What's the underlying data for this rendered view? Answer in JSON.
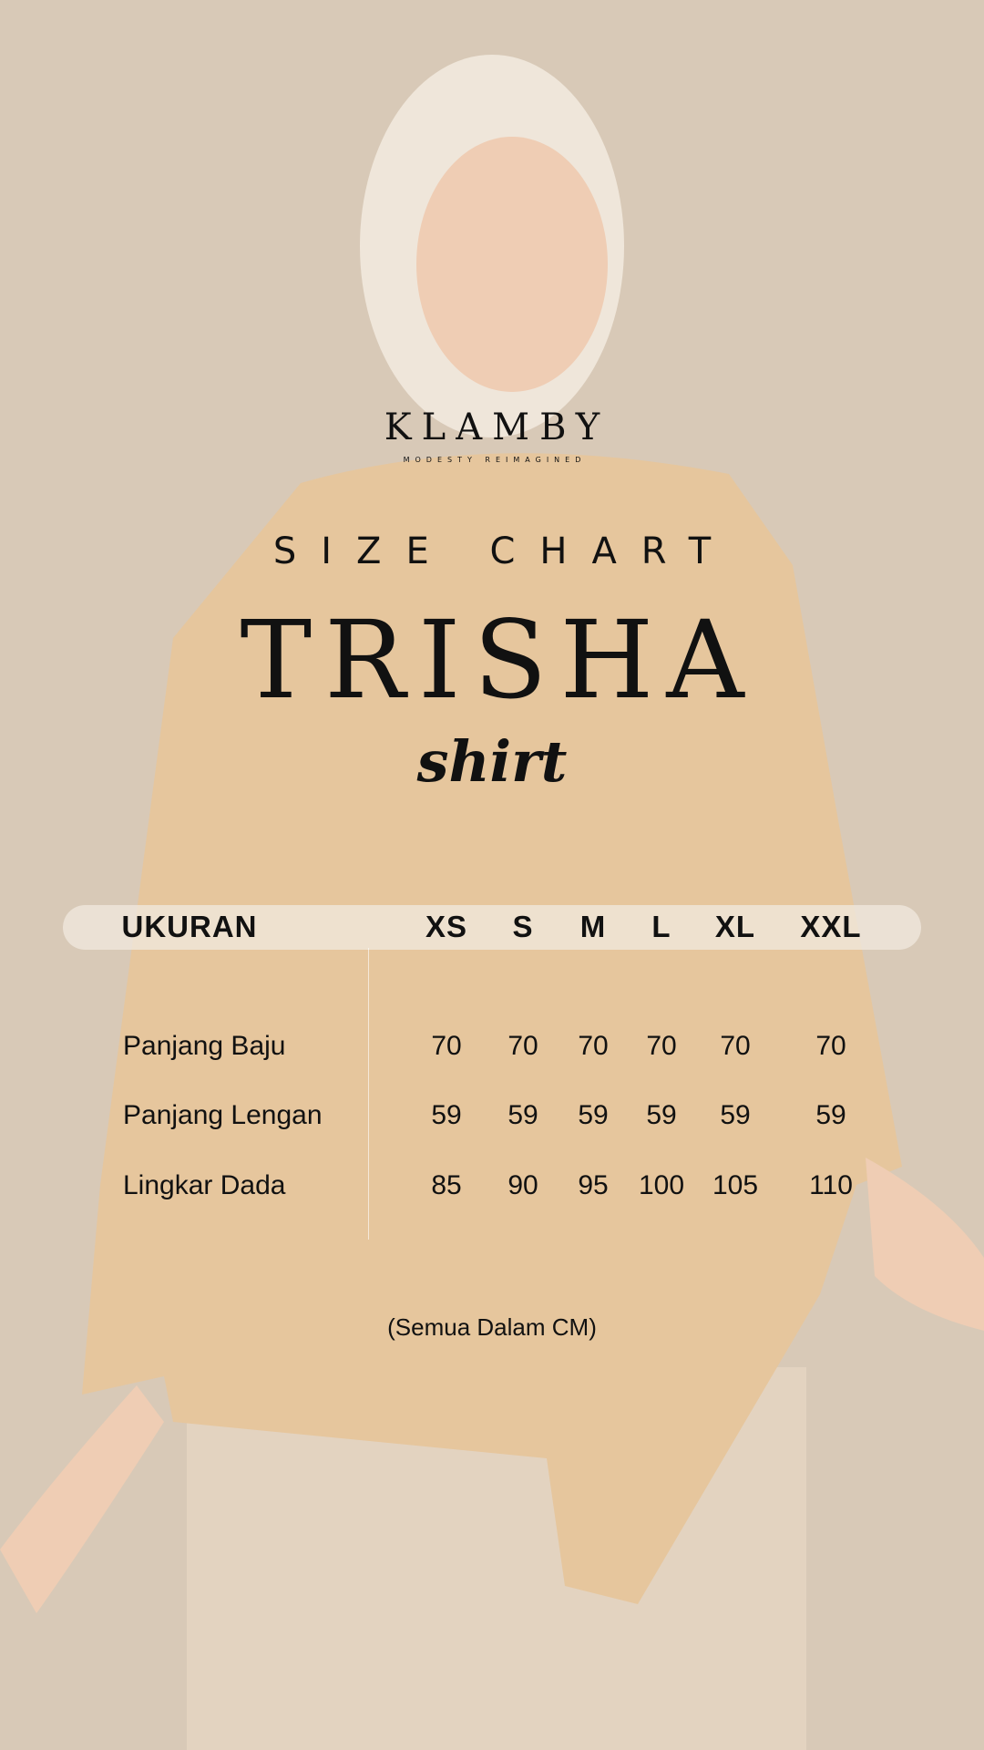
{
  "brand": {
    "name": "KLAMBY",
    "tagline": "MODESTY REIMAGINED"
  },
  "heading": "SIZE CHART",
  "product": {
    "name": "TRISHA",
    "type": "shirt"
  },
  "table": {
    "header_label": "UKURAN",
    "sizes": [
      "XS",
      "S",
      "M",
      "L",
      "XL",
      "XXL"
    ],
    "rows": [
      {
        "label": "Panjang Baju",
        "values": [
          "70",
          "70",
          "70",
          "70",
          "70",
          "70"
        ]
      },
      {
        "label": "Panjang Lengan",
        "values": [
          "59",
          "59",
          "59",
          "59",
          "59",
          "59"
        ]
      },
      {
        "label": "Lingkar Dada",
        "values": [
          "85",
          "90",
          "95",
          "100",
          "105",
          "110"
        ]
      }
    ]
  },
  "note": "(Semua Dalam CM)",
  "colors": {
    "background": "#d8c9b7",
    "shirt": "#e6c69d",
    "header_bar": "#f0e8de",
    "text": "#111111"
  }
}
